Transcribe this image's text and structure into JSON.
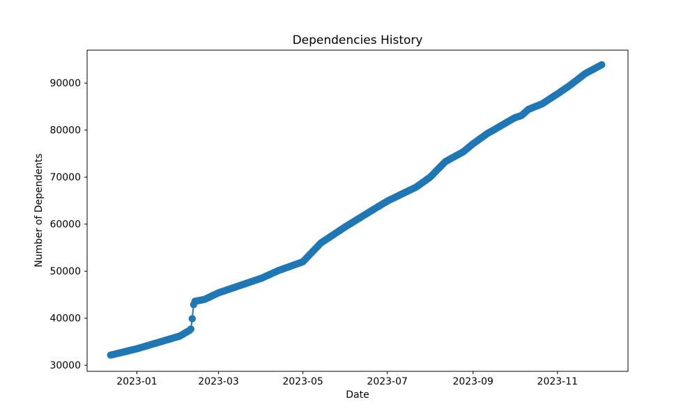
{
  "chart": {
    "title": "Dependencies History",
    "xlabel": "Date",
    "ylabel": "Number of Dependents"
  },
  "chart_data": {
    "type": "line",
    "marker": "circle",
    "line_color": "#1f77b4",
    "marker_color": "#1f77b4",
    "background_color": "#ffffff",
    "spine_color": "#000000",
    "title": "Dependencies History",
    "xlabel": "Date",
    "ylabel": "Number of Dependents",
    "legend": "none",
    "grid": false,
    "sampling": "daily points interpolated between anchors",
    "x_tick_dates": [
      "2023-01-01",
      "2023-03-01",
      "2023-05-01",
      "2023-07-01",
      "2023-09-01",
      "2023-11-01"
    ],
    "x_tick_labels": [
      "2023-01",
      "2023-03",
      "2023-05",
      "2023-07",
      "2023-09",
      "2023-11"
    ],
    "y_ticks": [
      30000,
      40000,
      50000,
      60000,
      70000,
      80000,
      90000
    ],
    "y_tick_labels": [
      "30000",
      "40000",
      "50000",
      "60000",
      "70000",
      "80000",
      "90000"
    ],
    "xlim_dates": [
      "2022-11-26",
      "2023-12-22"
    ],
    "ylim": [
      28700,
      97000
    ],
    "series_name": "Number of Dependents",
    "anchors": [
      [
        "2022-12-13",
        32150
      ],
      [
        "2023-01-01",
        33500
      ],
      [
        "2023-02-01",
        36200
      ],
      [
        "2023-02-08",
        37400
      ],
      [
        "2023-02-09",
        37700
      ],
      [
        "2023-02-10",
        39900
      ],
      [
        "2023-02-11",
        42900
      ],
      [
        "2023-02-12",
        43600
      ],
      [
        "2023-02-19",
        44000
      ],
      [
        "2023-03-01",
        45400
      ],
      [
        "2023-04-01",
        48500
      ],
      [
        "2023-04-13",
        50100
      ],
      [
        "2023-05-01",
        52000
      ],
      [
        "2023-05-14",
        56000
      ],
      [
        "2023-06-01",
        59500
      ],
      [
        "2023-06-22",
        63300
      ],
      [
        "2023-07-01",
        64900
      ],
      [
        "2023-07-22",
        67900
      ],
      [
        "2023-08-01",
        70000
      ],
      [
        "2023-08-12",
        73300
      ],
      [
        "2023-08-25",
        75400
      ],
      [
        "2023-09-01",
        77100
      ],
      [
        "2023-09-11",
        79200
      ],
      [
        "2023-10-01",
        82600
      ],
      [
        "2023-10-06",
        83100
      ],
      [
        "2023-10-11",
        84400
      ],
      [
        "2023-10-21",
        85600
      ],
      [
        "2023-11-01",
        87700
      ],
      [
        "2023-11-10",
        89500
      ],
      [
        "2023-11-21",
        92000
      ],
      [
        "2023-12-03",
        93900
      ]
    ]
  }
}
